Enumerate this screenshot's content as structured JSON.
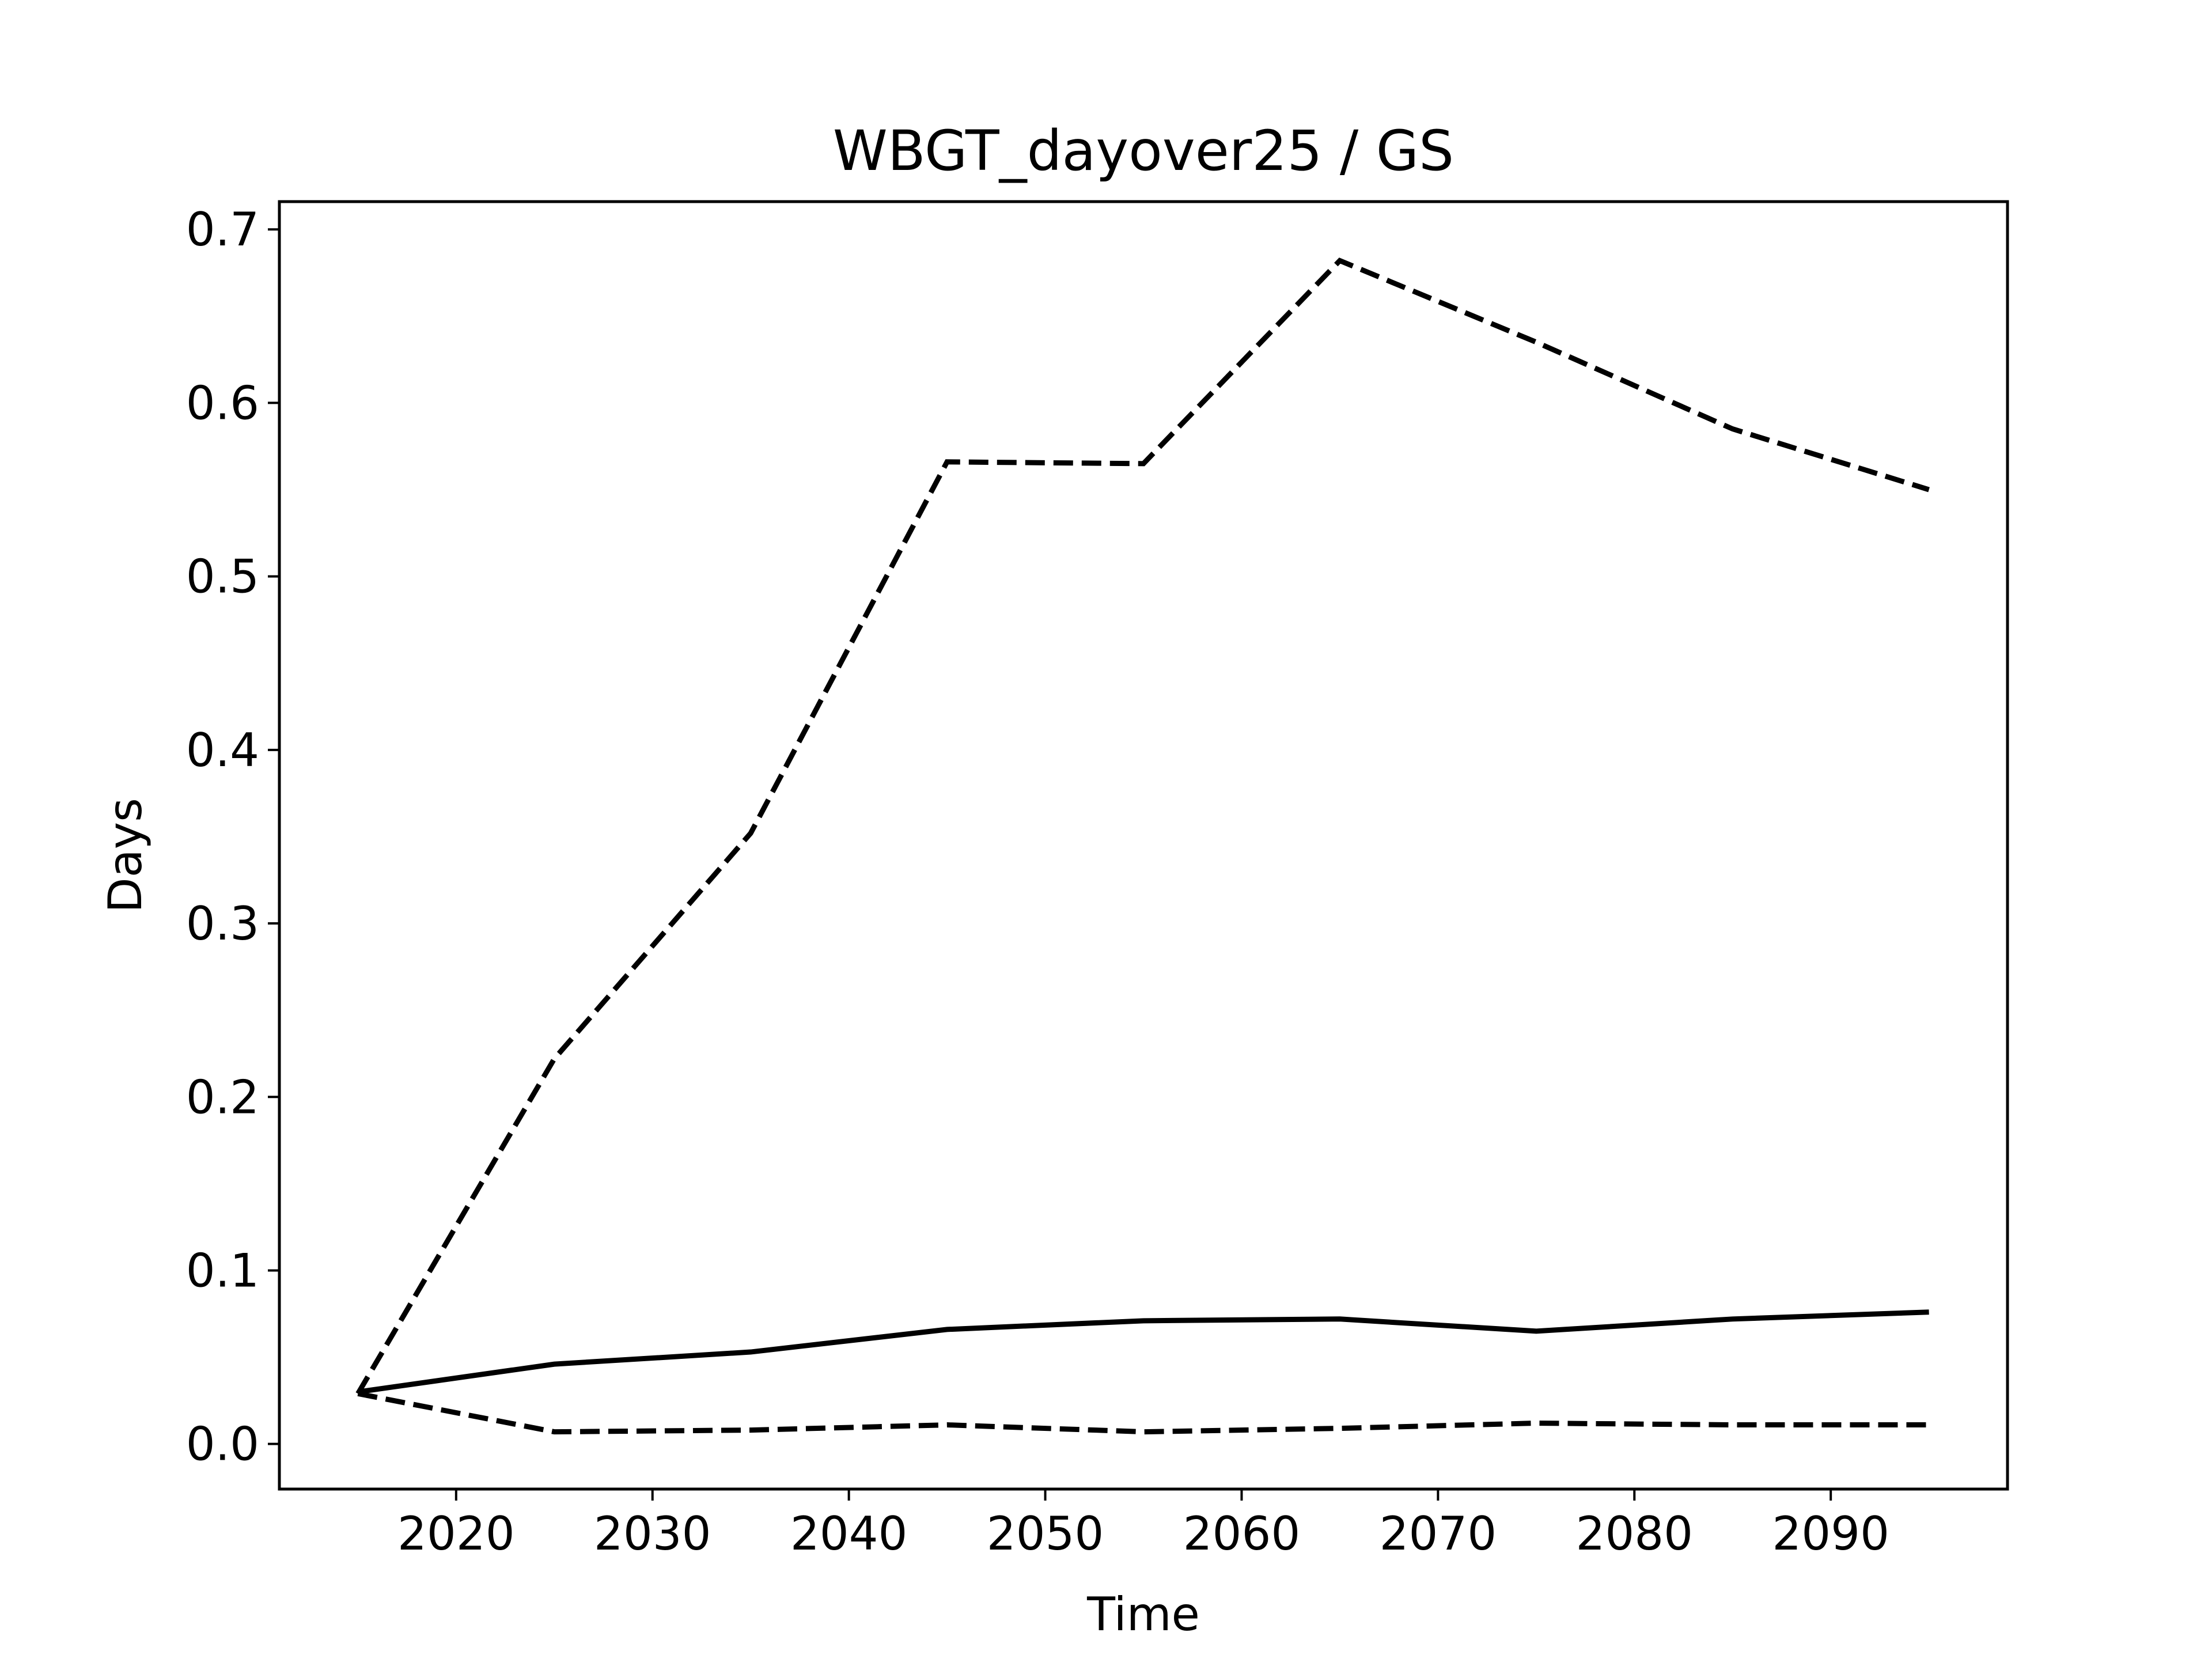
{
  "chart_data": {
    "type": "line",
    "title": "WBGT_dayover25 / GS",
    "xlabel": "Time",
    "ylabel": "Days",
    "xlim": [
      2011,
      2099
    ],
    "ylim": [
      -0.026,
      0.716
    ],
    "xticks": [
      2020,
      2030,
      2040,
      2050,
      2060,
      2070,
      2080,
      2090
    ],
    "yticks": [
      0.0,
      0.1,
      0.2,
      0.3,
      0.4,
      0.5,
      0.6,
      0.7
    ],
    "ytick_labels": [
      "0.0",
      "0.1",
      "0.2",
      "0.3",
      "0.4",
      "0.5",
      "0.6",
      "0.7"
    ],
    "grid": false,
    "x": [
      2015,
      2025,
      2035,
      2045,
      2055,
      2065,
      2075,
      2085,
      2095
    ],
    "series": [
      {
        "style": "dashed",
        "color": "#000000",
        "values": [
          0.029,
          0.222,
          0.352,
          0.566,
          0.565,
          0.682,
          0.635,
          0.585,
          0.55
        ]
      },
      {
        "style": "solid",
        "color": "#000000",
        "values": [
          0.03,
          0.046,
          0.053,
          0.066,
          0.071,
          0.072,
          0.065,
          0.072,
          0.076
        ]
      },
      {
        "style": "dashed",
        "color": "#000000",
        "values": [
          0.029,
          0.007,
          0.008,
          0.011,
          0.007,
          0.009,
          0.012,
          0.011,
          0.011
        ]
      }
    ]
  }
}
